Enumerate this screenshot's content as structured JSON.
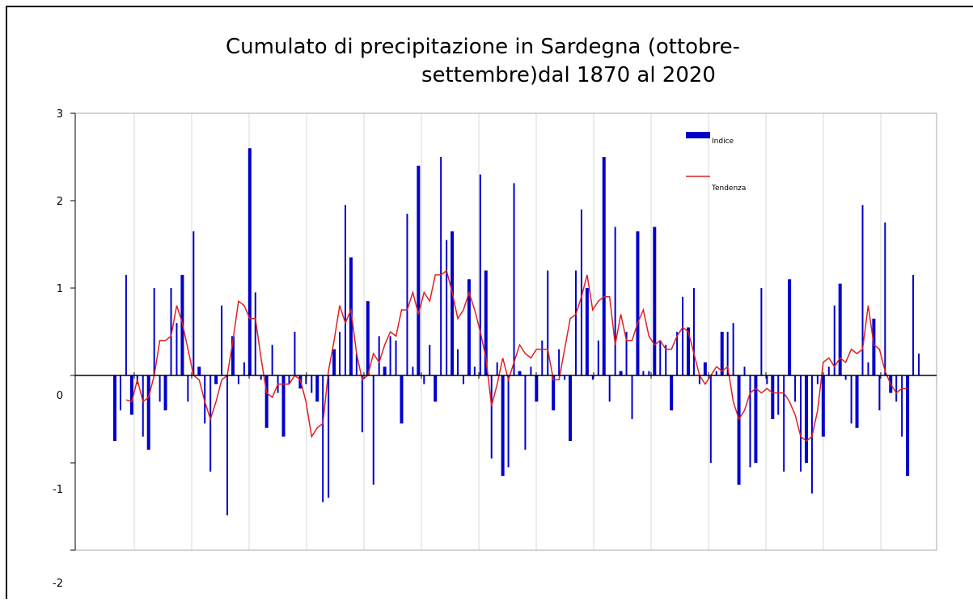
{
  "chart_data": {
    "type": "bar-line",
    "title": [
      "Cumulato  di  precipitazione  in  Sardegna  (ottobre-",
      "settembre)dal 1870 al 2020"
    ],
    "ylim": [
      -2,
      3
    ],
    "yticks": [
      -2,
      -1,
      0,
      1,
      2,
      3
    ],
    "grid": true,
    "legend": "top-right",
    "series": [
      {
        "name": "Indice",
        "color": "#0000cc",
        "kind": "bar",
        "values": [
          -0.75,
          -0.4,
          1.15,
          -0.45,
          -0.1,
          -0.7,
          -0.85,
          1.0,
          -0.3,
          -0.4,
          1.0,
          0.6,
          1.15,
          -0.3,
          1.65,
          0.1,
          -0.55,
          -1.1,
          -0.1,
          0.8,
          -1.6,
          0.45,
          -0.1,
          0.15,
          2.6,
          0.95,
          -0.05,
          -0.6,
          0.35,
          -0.2,
          -0.7,
          -0.1,
          0.5,
          -0.15,
          -0.1,
          -0.2,
          -0.3,
          -1.45,
          -1.4,
          0.3,
          0.5,
          1.95,
          1.35,
          0.25,
          -0.65,
          0.85,
          -1.25,
          0.45,
          0.1,
          0.45,
          0.4,
          -0.55,
          1.85,
          0.1,
          2.4,
          -0.1,
          0.35,
          -0.3,
          2.5,
          1.55,
          1.65,
          0.3,
          -0.1,
          1.1,
          0.1,
          2.3,
          1.2,
          -0.95,
          0.15,
          -1.15,
          -1.05,
          2.2,
          0.05,
          -0.85,
          0.1,
          -0.3,
          0.4,
          1.2,
          -0.4,
          0.3,
          -0.05,
          -0.75,
          1.2,
          1.9,
          1.0,
          -0.05,
          0.4,
          2.5,
          -0.3,
          1.7,
          0.05,
          0.5,
          -0.5,
          1.65,
          0.05,
          0.05,
          1.7,
          0.4,
          0.35,
          -0.4,
          0.5,
          0.9,
          0.55,
          1.0,
          -0.1,
          0.15,
          -1.0,
          0.05,
          0.5,
          0.5,
          0.6,
          -1.25,
          0.1,
          -1.05,
          -1.0,
          1.0,
          -0.1,
          -0.5,
          -0.45,
          -1.1,
          1.1,
          -0.3,
          -1.1,
          -1.0,
          -1.35,
          -0.1,
          -0.7,
          0.1,
          0.8,
          1.05,
          -0.05,
          -0.55,
          -0.6,
          1.95,
          0.15,
          0.65,
          -0.4,
          1.75,
          -0.2,
          -0.3,
          -0.7,
          -1.15,
          1.15,
          0.25
        ]
      },
      {
        "name": "Tendenza",
        "color": "#e02020",
        "kind": "line",
        "values": [
          null,
          null,
          -0.28,
          -0.3,
          -0.05,
          -0.3,
          -0.25,
          0.0,
          0.4,
          0.4,
          0.45,
          0.8,
          0.6,
          0.3,
          0.0,
          -0.05,
          -0.3,
          -0.5,
          -0.3,
          -0.05,
          0.0,
          0.4,
          0.85,
          0.8,
          0.65,
          0.65,
          0.2,
          -0.2,
          -0.25,
          -0.1,
          -0.1,
          -0.1,
          0.0,
          -0.05,
          -0.3,
          -0.7,
          -0.6,
          -0.55,
          0.05,
          0.4,
          0.8,
          0.6,
          0.75,
          0.25,
          -0.05,
          0.0,
          0.25,
          0.15,
          0.35,
          0.5,
          0.45,
          0.75,
          0.75,
          0.95,
          0.7,
          0.95,
          0.85,
          1.15,
          1.15,
          1.2,
          0.95,
          0.65,
          0.75,
          0.95,
          0.75,
          0.5,
          0.2,
          -0.35,
          -0.1,
          0.2,
          -0.05,
          0.15,
          0.35,
          0.25,
          0.2,
          0.3,
          0.3,
          0.3,
          -0.05,
          -0.05,
          0.3,
          0.65,
          0.7,
          0.9,
          1.15,
          0.75,
          0.85,
          0.9,
          0.9,
          0.35,
          0.7,
          0.4,
          0.4,
          0.6,
          0.75,
          0.45,
          0.35,
          0.4,
          0.3,
          0.3,
          0.45,
          0.55,
          0.5,
          0.25,
          0.0,
          -0.1,
          0.0,
          0.1,
          0.05,
          0.1,
          -0.3,
          -0.5,
          -0.4,
          -0.2,
          -0.15,
          -0.2,
          -0.15,
          -0.2,
          -0.2,
          -0.2,
          -0.3,
          -0.45,
          -0.7,
          -0.75,
          -0.7,
          -0.4,
          0.15,
          0.2,
          0.1,
          0.2,
          0.15,
          0.3,
          0.25,
          0.3,
          0.8,
          0.35,
          0.3,
          0.05,
          -0.1,
          -0.2,
          -0.15,
          -0.15,
          null,
          null
        ]
      }
    ]
  }
}
